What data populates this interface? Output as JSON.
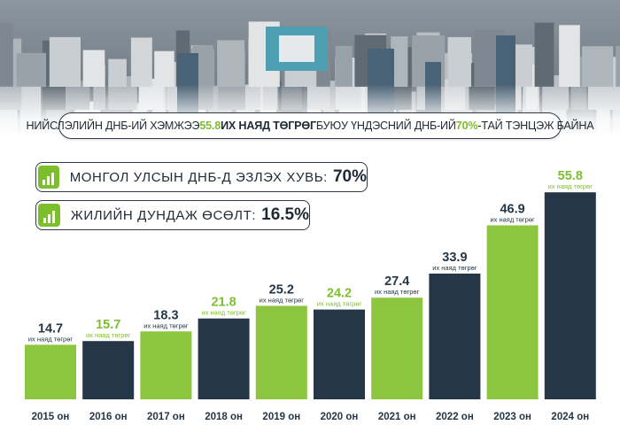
{
  "headline": {
    "part1": "НИЙСЛЭЛИЙН ДНБ-ИЙ ХЭМЖЭЭ ",
    "value": "55.8",
    "unit": " ИХ НАЯД ТӨГРӨГ",
    "part2": " БУЮУ ҮНДЭСНИЙ ДНБ-ИЙ ",
    "share": "70%",
    "part3": "-ТАЙ ТЭНЦЭЖ БАЙНА"
  },
  "stats": [
    {
      "label": "МОНГОЛ УЛСЫН ДНБ-Д ЭЗЛЭХ ХУВЬ:",
      "value": "70%",
      "icon": "bar-chart-icon"
    },
    {
      "label": "ЖИЛИЙН ДУНДАЖ ӨСӨЛТ:",
      "value": "16.5%",
      "icon": "bar-chart-icon"
    }
  ],
  "colors": {
    "green": "#8cc63f",
    "green_text": "#7cbf2d",
    "dark": "#253746",
    "text": "#1f2a35"
  },
  "chart_data": {
    "type": "bar",
    "categories": [
      "2015 он",
      "2016 он",
      "2017 он",
      "2018 он",
      "2019 он",
      "2020 он",
      "2021 он",
      "2022 он",
      "2023 он",
      "2024 он"
    ],
    "values": [
      14.7,
      15.7,
      18.3,
      21.8,
      25.2,
      24.2,
      27.4,
      33.9,
      46.9,
      55.8
    ],
    "value_labels": [
      "14.7",
      "15.7",
      "18.3",
      "21.8",
      "25.2",
      "24.2",
      "27.4",
      "33.9",
      "46.9",
      "55.8"
    ],
    "unit_label": "их наяд төгрөг",
    "bar_colors": [
      "green",
      "dark",
      "green",
      "dark",
      "green",
      "dark",
      "green",
      "dark",
      "green",
      "dark"
    ],
    "label_colors": [
      "dark",
      "green",
      "dark",
      "green",
      "dark",
      "green",
      "dark",
      "dark",
      "dark",
      "green"
    ],
    "ylim": [
      0,
      58
    ]
  }
}
